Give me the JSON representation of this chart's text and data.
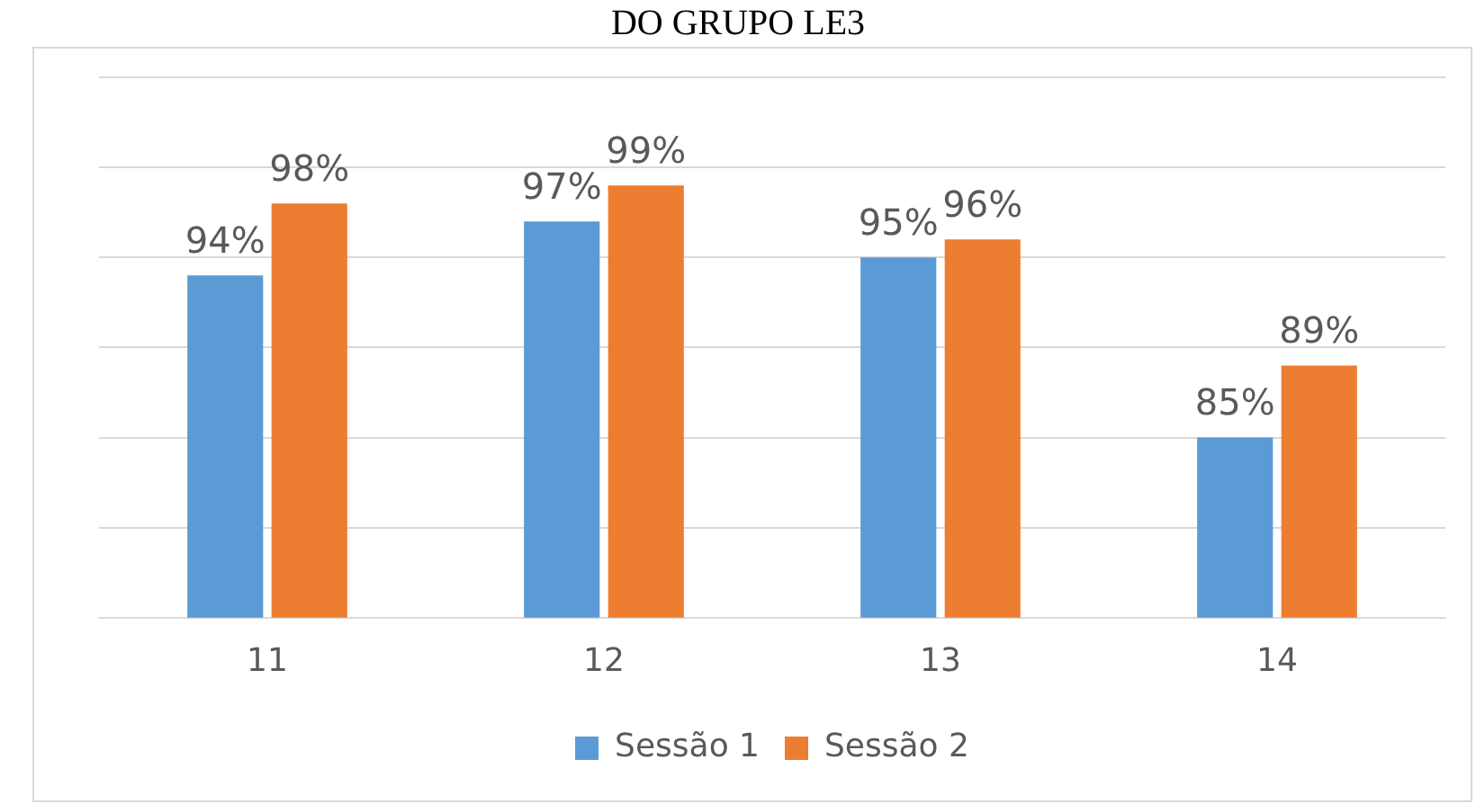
{
  "chart_data": {
    "type": "bar",
    "title": "DO GRUPO LE3",
    "categories": [
      "11",
      "12",
      "13",
      "14"
    ],
    "series": [
      {
        "name": "Sessão 1",
        "color": "#5b9bd5",
        "values": [
          94,
          97,
          95,
          85
        ],
        "value_labels": [
          "94%",
          "97%",
          "95%",
          "85%"
        ]
      },
      {
        "name": "Sessão 2",
        "color": "#ed7d31",
        "values": [
          98,
          99,
          96,
          89
        ],
        "value_labels": [
          "98%",
          "99%",
          "96%",
          "89%"
        ]
      }
    ],
    "ylim": [
      75,
      105
    ],
    "yticks": [
      {
        "value": 75,
        "label": null
      },
      {
        "value": 80,
        "label": null
      },
      {
        "value": 85,
        "label": null
      },
      {
        "value": 90,
        "label": null
      },
      {
        "value": 95,
        "label": null
      },
      {
        "value": 100,
        "label": null
      },
      {
        "value": 105,
        "label": null
      }
    ],
    "tick_labels": "x",
    "grid": "y",
    "legend": "bottom"
  }
}
